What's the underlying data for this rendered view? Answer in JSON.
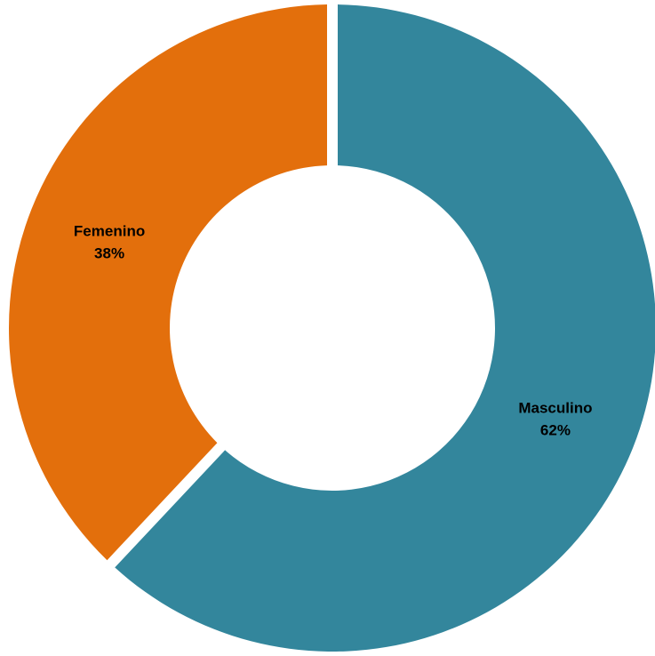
{
  "chart_data": {
    "type": "pie",
    "subtype": "donut",
    "categories": [
      "Masculino",
      "Femenino"
    ],
    "values": [
      62,
      38
    ],
    "value_labels": [
      "62%",
      "38%"
    ],
    "colors": [
      "#33869c",
      "#e36f0c"
    ],
    "start_angle_deg": 0,
    "direction": "clockwise"
  }
}
